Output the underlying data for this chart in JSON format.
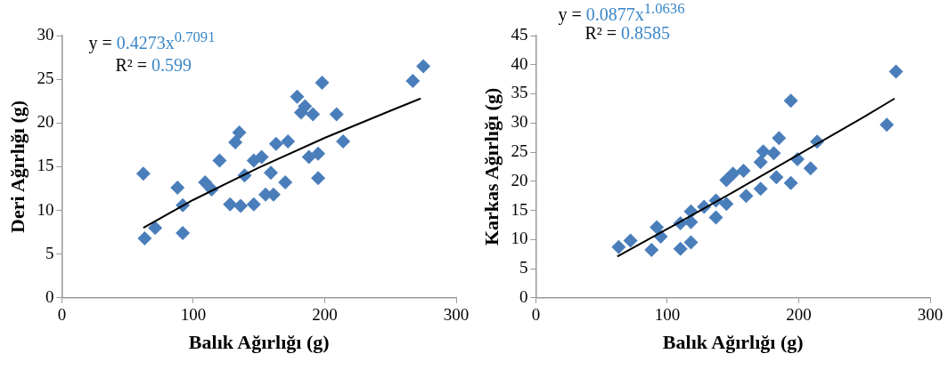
{
  "chart_data": [
    {
      "type": "scatter",
      "xlabel": "Balık Ağırlığı (g)",
      "ylabel": "Deri Ağırlığı (g)",
      "xlim": [
        0,
        300
      ],
      "xticks": [
        0,
        100,
        200,
        300
      ],
      "ylim": [
        0,
        30
      ],
      "yticks": [
        0,
        5,
        10,
        15,
        20,
        25,
        30
      ],
      "grid": false,
      "legend": false,
      "marker": "diamond",
      "annotations": [
        "y = 0.4273x$^{0.7091}$",
        "R² = 0.599"
      ],
      "series": [
        {
          "color": "#4a7ebb",
          "x": [
            62,
            63,
            71,
            92,
            88,
            92,
            109,
            114,
            120,
            132,
            135,
            128,
            136,
            146,
            155,
            161,
            139,
            146,
            152,
            159,
            163,
            172,
            170,
            188,
            195,
            195,
            179,
            185,
            191,
            182,
            198,
            209,
            214,
            267,
            275
          ],
          "values": [
            14.2,
            6.8,
            8.0,
            7.4,
            12.6,
            10.6,
            13.2,
            12.4,
            15.7,
            17.8,
            18.9,
            10.7,
            10.5,
            10.7,
            11.8,
            11.8,
            14.0,
            15.7,
            16.1,
            14.3,
            17.6,
            17.9,
            13.2,
            16.1,
            16.5,
            13.7,
            23.0,
            21.9,
            21.0,
            21.2,
            24.6,
            21.0,
            17.9,
            24.8,
            26.5
          ]
        },
        {
          "type": "line",
          "color": "#000000",
          "marker": "none",
          "x": [
            62,
            100,
            150,
            200,
            250,
            273
          ],
          "values": [
            8.0,
            11.2,
            14.9,
            18.3,
            21.4,
            22.8
          ]
        }
      ]
    },
    {
      "type": "scatter",
      "xlabel": "Balık Ağırlığı (g)",
      "ylabel": "Karkas Ağırlığı (g)",
      "xlim": [
        0,
        300
      ],
      "xticks": [
        0,
        100,
        200,
        300
      ],
      "ylim": [
        0,
        45
      ],
      "yticks": [
        0,
        5,
        10,
        15,
        20,
        25,
        30,
        35,
        40,
        45
      ],
      "grid": false,
      "legend": false,
      "marker": "diamond",
      "annotations": [
        "y = 0.0877x$^{1.0636}$",
        "R² = 0.8585"
      ],
      "series": [
        {
          "color": "#4a7ebb",
          "x": [
            63,
            72,
            88,
            92,
            95,
            110,
            118,
            110,
            118,
            118,
            128,
            137,
            137,
            145,
            145,
            150,
            158,
            160,
            171,
            171,
            173,
            185,
            181,
            183,
            194,
            199,
            194,
            209,
            214,
            267,
            274
          ],
          "values": [
            8.7,
            9.8,
            8.2,
            12.1,
            10.5,
            8.4,
            9.5,
            12.8,
            13.0,
            14.8,
            15.6,
            13.8,
            16.7,
            16.1,
            20.2,
            21.3,
            21.8,
            17.5,
            18.7,
            23.3,
            25.1,
            27.4,
            24.8,
            20.7,
            19.7,
            23.8,
            33.8,
            22.2,
            26.8,
            29.7,
            38.8
          ]
        },
        {
          "type": "line",
          "color": "#000000",
          "marker": "none",
          "x": [
            62,
            100,
            150,
            200,
            250,
            273
          ],
          "values": [
            7.1,
            11.8,
            18.1,
            24.6,
            31.1,
            34.2
          ]
        }
      ]
    }
  ]
}
